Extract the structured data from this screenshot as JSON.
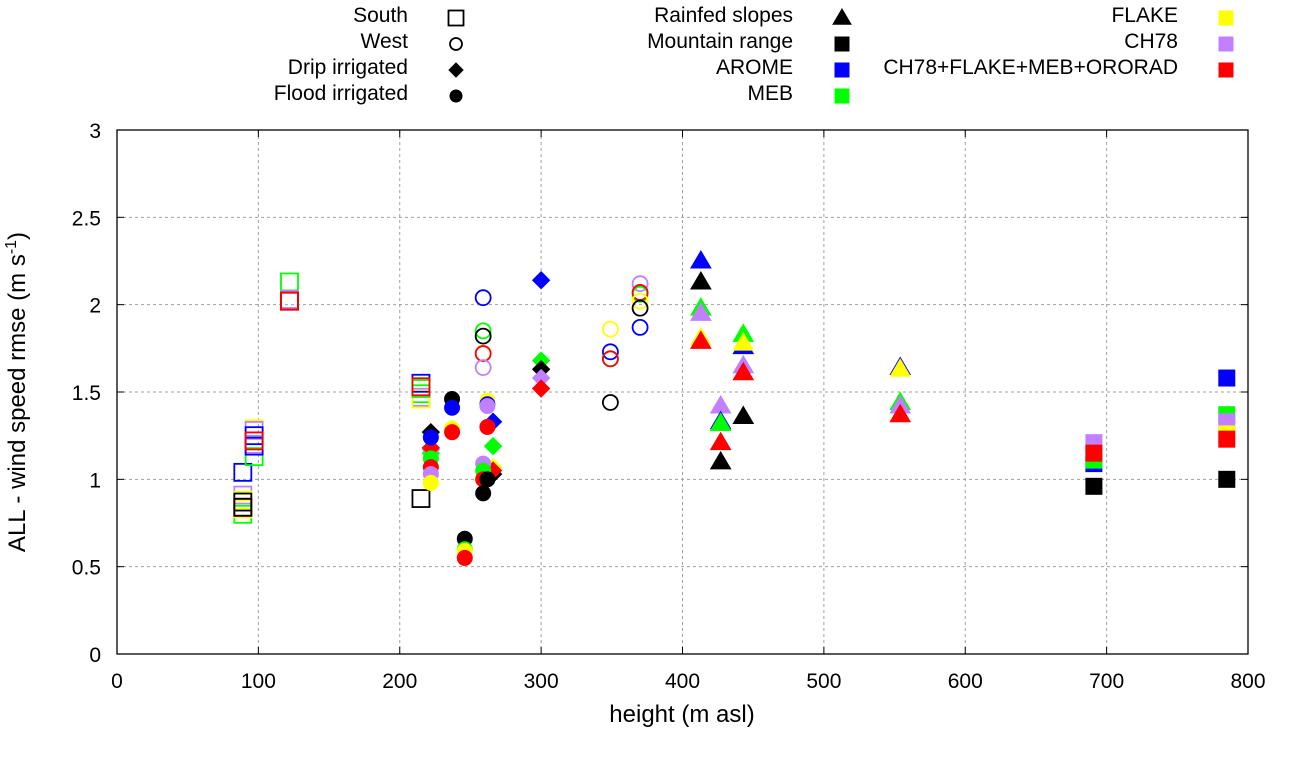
{
  "chart_data": {
    "type": "scatter",
    "title": "",
    "xlabel": "height (m asl)",
    "ylabel_main": "ALL - wind speed rmse (m s",
    "ylabel_sup": "-1",
    "ylabel_close": ")",
    "xlim": [
      0,
      800
    ],
    "ylim": [
      0,
      3
    ],
    "xticks": [
      0,
      100,
      200,
      300,
      400,
      500,
      600,
      700,
      800
    ],
    "yticks": [
      0,
      0.5,
      1,
      1.5,
      2,
      2.5,
      3
    ],
    "grid": true,
    "legend_position": "top",
    "legend_region": [
      {
        "label": "South",
        "shape": "square",
        "filled": false
      },
      {
        "label": "West",
        "shape": "circle",
        "filled": false
      },
      {
        "label": "Drip irrigated",
        "shape": "diamond",
        "filled": true
      },
      {
        "label": "Flood irrigated",
        "shape": "circle",
        "filled": true
      },
      {
        "label": "Rainfed slopes",
        "shape": "triangle",
        "filled": true
      },
      {
        "label": "Mountain range",
        "shape": "square",
        "filled": true
      }
    ],
    "legend_model": [
      {
        "label": "AROME",
        "color": "#0000ff"
      },
      {
        "label": "MEB",
        "color": "#00ff00"
      },
      {
        "label": "FLAKE",
        "color": "#ffff00"
      },
      {
        "label": "CH78",
        "color": "#c080ff"
      },
      {
        "label": "CH78+FLAKE+MEB+ORORAD",
        "color": "#ff0000"
      }
    ],
    "colors": {
      "REF": "#000000",
      "AROME": "#0000ff",
      "MEB": "#00ff00",
      "FLAKE": "#ffff00",
      "CH78": "#c080ff",
      "CH78+FLAKE+MEB+ORORAD": "#ff0000"
    },
    "series": [
      {
        "region": "South",
        "shape": "square",
        "filled": false,
        "points": [
          {
            "x": 89,
            "y": 1.04,
            "model": "AROME"
          },
          {
            "x": 89,
            "y": 0.8,
            "model": "MEB"
          },
          {
            "x": 89,
            "y": 0.91,
            "model": "CH78"
          },
          {
            "x": 89,
            "y": 0.88,
            "model": "FLAKE"
          },
          {
            "x": 89,
            "y": 0.87,
            "model": "REF"
          },
          {
            "x": 89,
            "y": 0.84,
            "model": "CH78"
          },
          {
            "x": 89,
            "y": 0.83,
            "model": "FLAKE"
          },
          {
            "x": 89,
            "y": 0.84,
            "model": "CH78+FLAKE+MEB+ORORAD"
          },
          {
            "x": 89,
            "y": 0.84,
            "model": "REF"
          },
          {
            "x": 97,
            "y": 1.13,
            "model": "MEB"
          },
          {
            "x": 97,
            "y": 1.29,
            "model": "FLAKE"
          },
          {
            "x": 97,
            "y": 1.28,
            "model": "CH78"
          },
          {
            "x": 97,
            "y": 1.25,
            "model": "AROME"
          },
          {
            "x": 97,
            "y": 1.2,
            "model": "CH78"
          },
          {
            "x": 97,
            "y": 1.19,
            "model": "AROME"
          },
          {
            "x": 97,
            "y": 1.22,
            "model": "CH78+FLAKE+MEB+ORORAD"
          },
          {
            "x": 122,
            "y": 2.13,
            "model": "MEB"
          },
          {
            "x": 122,
            "y": 2.03,
            "model": "CH78"
          },
          {
            "x": 122,
            "y": 2.02,
            "model": "REF"
          },
          {
            "x": 122,
            "y": 2.02,
            "model": "CH78+FLAKE+MEB+ORORAD"
          },
          {
            "x": 215,
            "y": 1.47,
            "model": "CH78"
          },
          {
            "x": 215,
            "y": 1.49,
            "model": "MEB"
          },
          {
            "x": 215,
            "y": 1.46,
            "model": "FLAKE"
          },
          {
            "x": 215,
            "y": 1.55,
            "model": "AROME"
          },
          {
            "x": 215,
            "y": 1.52,
            "model": "MEB"
          },
          {
            "x": 215,
            "y": 1.53,
            "model": "CH78+FLAKE+MEB+ORORAD"
          },
          {
            "x": 215,
            "y": 0.89,
            "model": "REF"
          }
        ]
      },
      {
        "region": "West",
        "shape": "circle",
        "filled": false,
        "points": [
          {
            "x": 259,
            "y": 2.04,
            "model": "AROME"
          },
          {
            "x": 259,
            "y": 1.85,
            "model": "MEB"
          },
          {
            "x": 259,
            "y": 1.82,
            "model": "REF"
          },
          {
            "x": 259,
            "y": 1.72,
            "model": "FLAKE"
          },
          {
            "x": 259,
            "y": 1.72,
            "model": "CH78+FLAKE+MEB+ORORAD"
          },
          {
            "x": 259,
            "y": 1.64,
            "model": "CH78"
          },
          {
            "x": 349,
            "y": 1.86,
            "model": "FLAKE"
          },
          {
            "x": 349,
            "y": 1.73,
            "model": "AROME"
          },
          {
            "x": 349,
            "y": 1.69,
            "model": "MEB"
          },
          {
            "x": 349,
            "y": 1.69,
            "model": "CH78+FLAKE+MEB+ORORAD"
          },
          {
            "x": 349,
            "y": 1.44,
            "model": "REF"
          },
          {
            "x": 370,
            "y": 2.12,
            "model": "CH78"
          },
          {
            "x": 370,
            "y": 2.06,
            "model": "MEB"
          },
          {
            "x": 370,
            "y": 2.07,
            "model": "CH78+FLAKE+MEB+ORORAD"
          },
          {
            "x": 370,
            "y": 2.02,
            "model": "FLAKE"
          },
          {
            "x": 370,
            "y": 1.98,
            "model": "REF"
          },
          {
            "x": 370,
            "y": 1.87,
            "model": "AROME"
          }
        ]
      },
      {
        "region": "Drip irrigated",
        "shape": "diamond",
        "filled": true,
        "points": [
          {
            "x": 222,
            "y": 1.27,
            "model": "REF"
          },
          {
            "x": 222,
            "y": 1.15,
            "model": "MEB"
          },
          {
            "x": 222,
            "y": 1.17,
            "model": "CH78"
          },
          {
            "x": 222,
            "y": 1.18,
            "model": "FLAKE"
          },
          {
            "x": 222,
            "y": 1.18,
            "model": "CH78+FLAKE+MEB+ORORAD"
          },
          {
            "x": 266,
            "y": 1.33,
            "model": "AROME"
          },
          {
            "x": 266,
            "y": 1.19,
            "model": "MEB"
          },
          {
            "x": 266,
            "y": 1.07,
            "model": "FLAKE"
          },
          {
            "x": 266,
            "y": 1.03,
            "model": "REF"
          },
          {
            "x": 266,
            "y": 1.05,
            "model": "CH78+FLAKE+MEB+ORORAD"
          },
          {
            "x": 300,
            "y": 2.14,
            "model": "AROME"
          },
          {
            "x": 300,
            "y": 1.68,
            "model": "MEB"
          },
          {
            "x": 300,
            "y": 1.63,
            "model": "REF"
          },
          {
            "x": 300,
            "y": 1.58,
            "model": "CH78"
          },
          {
            "x": 300,
            "y": 1.52,
            "model": "CH78+FLAKE+MEB+ORORAD"
          }
        ]
      },
      {
        "region": "Flood irrigated",
        "shape": "circle",
        "filled": true,
        "points": [
          {
            "x": 222,
            "y": 1.24,
            "model": "AROME"
          },
          {
            "x": 222,
            "y": 1.12,
            "model": "MEB"
          },
          {
            "x": 222,
            "y": 1.07,
            "model": "CH78+FLAKE+MEB+ORORAD"
          },
          {
            "x": 222,
            "y": 1.03,
            "model": "CH78"
          },
          {
            "x": 222,
            "y": 0.98,
            "model": "FLAKE"
          },
          {
            "x": 237,
            "y": 1.46,
            "model": "REF"
          },
          {
            "x": 237,
            "y": 1.41,
            "model": "AROME"
          },
          {
            "x": 237,
            "y": 1.29,
            "model": "FLAKE"
          },
          {
            "x": 237,
            "y": 1.27,
            "model": "CH78+FLAKE+MEB+ORORAD"
          },
          {
            "x": 246,
            "y": 0.66,
            "model": "REF"
          },
          {
            "x": 246,
            "y": 0.6,
            "model": "MEB"
          },
          {
            "x": 246,
            "y": 0.59,
            "model": "FLAKE"
          },
          {
            "x": 246,
            "y": 0.55,
            "model": "CH78+FLAKE+MEB+ORORAD"
          },
          {
            "x": 262,
            "y": 1.45,
            "model": "FLAKE"
          },
          {
            "x": 262,
            "y": 1.43,
            "model": "AROME"
          },
          {
            "x": 262,
            "y": 1.42,
            "model": "CH78"
          },
          {
            "x": 262,
            "y": 1.3,
            "model": "CH78+FLAKE+MEB+ORORAD"
          },
          {
            "x": 259,
            "y": 1.09,
            "model": "CH78"
          },
          {
            "x": 259,
            "y": 1.05,
            "model": "MEB"
          },
          {
            "x": 259,
            "y": 1.0,
            "model": "CH78+FLAKE+MEB+ORORAD"
          },
          {
            "x": 262,
            "y": 1.0,
            "model": "REF"
          },
          {
            "x": 259,
            "y": 0.92,
            "model": "REF"
          }
        ]
      },
      {
        "region": "Rainfed slopes",
        "shape": "triangle",
        "filled": true,
        "points": [
          {
            "x": 413,
            "y": 2.25,
            "model": "AROME"
          },
          {
            "x": 413,
            "y": 2.13,
            "model": "REF"
          },
          {
            "x": 413,
            "y": 1.98,
            "model": "MEB"
          },
          {
            "x": 413,
            "y": 1.95,
            "model": "CH78"
          },
          {
            "x": 413,
            "y": 1.81,
            "model": "FLAKE"
          },
          {
            "x": 413,
            "y": 1.79,
            "model": "CH78+FLAKE+MEB+ORORAD"
          },
          {
            "x": 427,
            "y": 1.42,
            "model": "CH78"
          },
          {
            "x": 427,
            "y": 1.33,
            "model": "AROME"
          },
          {
            "x": 427,
            "y": 1.32,
            "model": "MEB"
          },
          {
            "x": 427,
            "y": 1.21,
            "model": "CH78+FLAKE+MEB+ORORAD"
          },
          {
            "x": 427,
            "y": 1.1,
            "model": "REF"
          },
          {
            "x": 443,
            "y": 1.83,
            "model": "MEB"
          },
          {
            "x": 443,
            "y": 1.76,
            "model": "AROME"
          },
          {
            "x": 443,
            "y": 1.78,
            "model": "FLAKE"
          },
          {
            "x": 443,
            "y": 1.65,
            "model": "CH78"
          },
          {
            "x": 443,
            "y": 1.61,
            "model": "CH78+FLAKE+MEB+ORORAD"
          },
          {
            "x": 443,
            "y": 1.36,
            "model": "REF"
          },
          {
            "x": 554,
            "y": 1.64,
            "model": "AROME"
          },
          {
            "x": 554,
            "y": 1.63,
            "model": "FLAKE"
          },
          {
            "x": 554,
            "y": 1.44,
            "model": "MEB"
          },
          {
            "x": 554,
            "y": 1.42,
            "model": "CH78"
          },
          {
            "x": 554,
            "y": 1.37,
            "model": "CH78+FLAKE+MEB+ORORAD"
          }
        ]
      },
      {
        "region": "Mountain range",
        "shape": "square",
        "filled": true,
        "points": [
          {
            "x": 691,
            "y": 1.21,
            "model": "CH78"
          },
          {
            "x": 691,
            "y": 1.09,
            "model": "AROME"
          },
          {
            "x": 691,
            "y": 1.11,
            "model": "MEB"
          },
          {
            "x": 691,
            "y": 1.15,
            "model": "CH78+FLAKE+MEB+ORORAD"
          },
          {
            "x": 691,
            "y": 0.96,
            "model": "REF"
          },
          {
            "x": 785,
            "y": 1.58,
            "model": "AROME"
          },
          {
            "x": 785,
            "y": 1.37,
            "model": "MEB"
          },
          {
            "x": 785,
            "y": 1.33,
            "model": "CH78"
          },
          {
            "x": 785,
            "y": 1.26,
            "model": "FLAKE"
          },
          {
            "x": 785,
            "y": 1.23,
            "model": "CH78+FLAKE+MEB+ORORAD"
          },
          {
            "x": 785,
            "y": 1.0,
            "model": "REF"
          }
        ]
      }
    ]
  }
}
